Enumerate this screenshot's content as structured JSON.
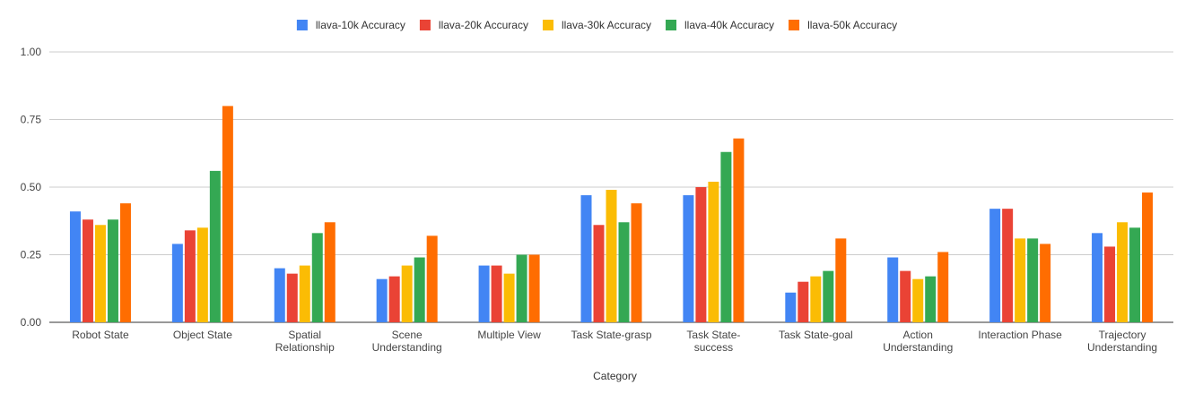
{
  "chart_data": {
    "type": "bar",
    "xlabel": "Category",
    "ylabel": "",
    "ylim": [
      0,
      1.0
    ],
    "yticks": [
      "0.00",
      "0.25",
      "0.50",
      "0.75",
      "1.00"
    ],
    "ytick_values": [
      0,
      0.25,
      0.5,
      0.75,
      1.0
    ],
    "grid": true,
    "legend_position": "top-center",
    "categories": [
      [
        "Robot State"
      ],
      [
        "Object State"
      ],
      [
        "Spatial",
        "Relationship"
      ],
      [
        "Scene",
        "Understanding"
      ],
      [
        "Multiple View"
      ],
      [
        "Task State-grasp"
      ],
      [
        "Task State-",
        "success"
      ],
      [
        "Task State-goal"
      ],
      [
        "Action",
        "Understanding"
      ],
      [
        "Interaction Phase"
      ],
      [
        "Trajectory",
        "Understanding"
      ]
    ],
    "series": [
      {
        "name": "llava-10k Accuracy",
        "color": "#4285F4",
        "values": [
          0.41,
          0.29,
          0.2,
          0.16,
          0.21,
          0.47,
          0.47,
          0.11,
          0.24,
          0.42,
          0.33
        ]
      },
      {
        "name": "llava-20k Accuracy",
        "color": "#EA4335",
        "values": [
          0.38,
          0.34,
          0.18,
          0.17,
          0.21,
          0.36,
          0.5,
          0.15,
          0.19,
          0.42,
          0.28
        ]
      },
      {
        "name": "llava-30k Accuracy",
        "color": "#FBBC04",
        "values": [
          0.36,
          0.35,
          0.21,
          0.21,
          0.18,
          0.49,
          0.52,
          0.17,
          0.16,
          0.31,
          0.37
        ]
      },
      {
        "name": "llava-40k Accuracy",
        "color": "#34A853",
        "values": [
          0.38,
          0.56,
          0.33,
          0.24,
          0.25,
          0.37,
          0.63,
          0.19,
          0.17,
          0.31,
          0.35
        ]
      },
      {
        "name": "llava-50k Accuracy",
        "color": "#FF6D01",
        "values": [
          0.44,
          0.8,
          0.37,
          0.32,
          0.25,
          0.44,
          0.68,
          0.31,
          0.26,
          0.29,
          0.48
        ]
      }
    ]
  }
}
